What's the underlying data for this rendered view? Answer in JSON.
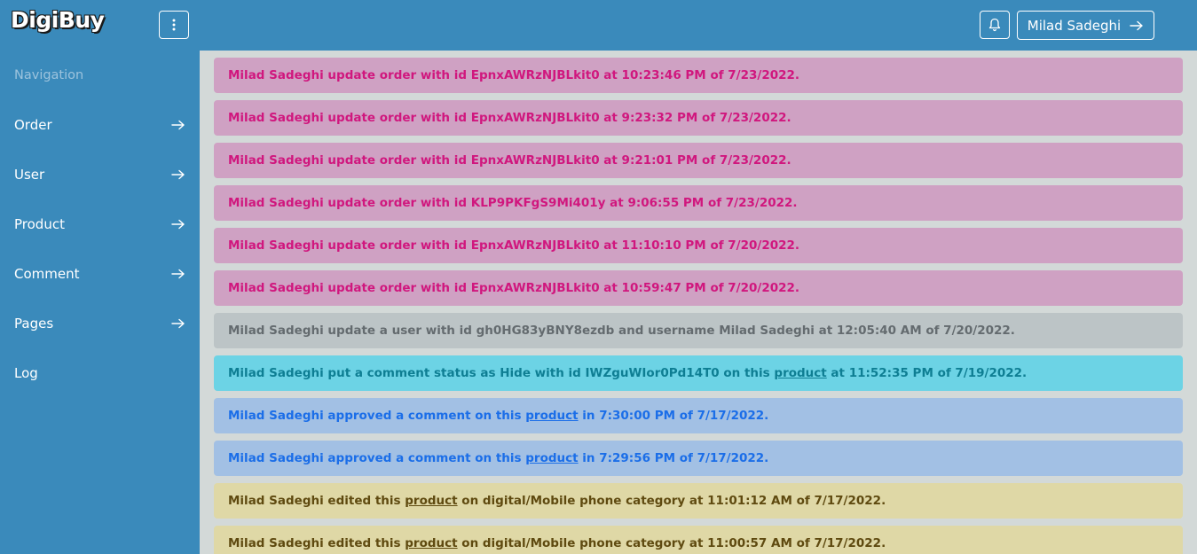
{
  "header": {
    "logo": "DigiBuy",
    "user_name": "Milad Sadeghi"
  },
  "sidebar": {
    "heading": "Navigation",
    "items": [
      {
        "label": "Order",
        "arrow": true
      },
      {
        "label": "User",
        "arrow": true
      },
      {
        "label": "Product",
        "arrow": true
      },
      {
        "label": "Comment",
        "arrow": true
      },
      {
        "label": "Pages",
        "arrow": true
      },
      {
        "label": "Log",
        "arrow": false
      }
    ]
  },
  "colors": {
    "header_bg": "#3a8abb",
    "content_bg": "#d3d9d8",
    "pink_bg": "#cfa1c3",
    "pink_text": "#d0177e",
    "gray_bg": "#bcc4c6",
    "cyan_bg": "#6cd3e5",
    "blue_bg": "#a2c0e4",
    "yellow_bg": "#dfd8a6"
  },
  "logs": [
    {
      "style": "pink",
      "before": "Milad Sadeghi update order with id EpnxAWRzNJBLkit0 at 10:23:46 PM of 7/23/2022.",
      "link": "",
      "after": ""
    },
    {
      "style": "pink",
      "before": "Milad Sadeghi update order with id EpnxAWRzNJBLkit0 at 9:23:32 PM of 7/23/2022.",
      "link": "",
      "after": ""
    },
    {
      "style": "pink",
      "before": "Milad Sadeghi update order with id EpnxAWRzNJBLkit0 at 9:21:01 PM of 7/23/2022.",
      "link": "",
      "after": ""
    },
    {
      "style": "pink",
      "before": "Milad Sadeghi update order with id KLP9PKFgS9Mi401y at 9:06:55 PM of 7/23/2022.",
      "link": "",
      "after": ""
    },
    {
      "style": "pink",
      "before": "Milad Sadeghi update order with id EpnxAWRzNJBLkit0 at 11:10:10 PM of 7/20/2022.",
      "link": "",
      "after": ""
    },
    {
      "style": "pink",
      "before": "Milad Sadeghi update order with id EpnxAWRzNJBLkit0 at 10:59:47 PM of 7/20/2022.",
      "link": "",
      "after": ""
    },
    {
      "style": "gray",
      "before": "Milad Sadeghi update a user with id gh0HG83yBNY8ezdb and username Milad Sadeghi at 12:05:40 AM of 7/20/2022.",
      "link": "",
      "after": ""
    },
    {
      "style": "cyan",
      "before": "Milad Sadeghi put a comment status as Hide with id IWZguWIor0Pd14T0 on this ",
      "link": "product",
      "after": " at 11:52:35 PM of 7/19/2022."
    },
    {
      "style": "blue",
      "before": "Milad Sadeghi approved a comment on this ",
      "link": "product",
      "after": " in 7:30:00 PM of 7/17/2022."
    },
    {
      "style": "blue",
      "before": "Milad Sadeghi approved a comment on this ",
      "link": "product",
      "after": " in 7:29:56 PM of 7/17/2022."
    },
    {
      "style": "yellow",
      "before": "Milad Sadeghi edited this ",
      "link": "product",
      "after": " on digital/Mobile phone category at 11:01:12 AM of 7/17/2022."
    },
    {
      "style": "yellow",
      "before": "Milad Sadeghi edited this ",
      "link": "product",
      "after": " on digital/Mobile phone category at 11:00:57 AM of 7/17/2022."
    }
  ]
}
